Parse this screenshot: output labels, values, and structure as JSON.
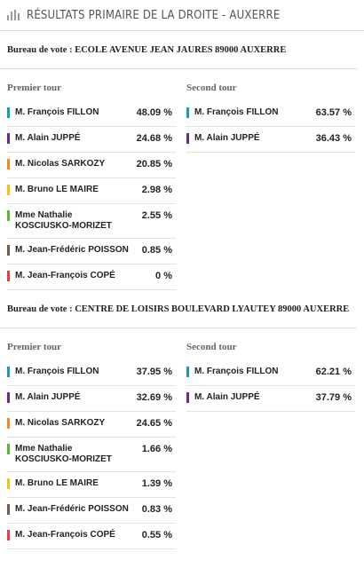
{
  "header": {
    "title": "RÉSULTATS PRIMAIRE DE LA DROITE - AUXERRE"
  },
  "bureaus": [
    {
      "name": "Bureau de vote : ECOLE AVENUE JEAN JAURES 89000 AUXERRE",
      "rounds": [
        {
          "title": "Premier tour",
          "results": [
            {
              "candidate": "M. François FILLON",
              "score": "48.09 %",
              "color": "#1a9bb5"
            },
            {
              "candidate": "M. Alain JUPPÉ",
              "score": "24.68 %",
              "color": "#6a2a8a"
            },
            {
              "candidate": "M. Nicolas SARKOZY",
              "score": "20.85 %",
              "color": "#f08a24"
            },
            {
              "candidate": "M. Bruno LE MAIRE",
              "score": "2.98 %",
              "color": "#f2c21b"
            },
            {
              "candidate": "Mme Nathalie KOSCIUSKO-MORIZET",
              "score": "2.55 %",
              "color": "#5cb531"
            },
            {
              "candidate": "M. Jean-Frédéric POISSON",
              "score": "0.85 %",
              "color": "#7a5a4a"
            },
            {
              "candidate": "M. Jean-François COPÉ",
              "score": "0 %",
              "color": "#e5404a"
            }
          ]
        },
        {
          "title": "Second tour",
          "results": [
            {
              "candidate": "M. François FILLON",
              "score": "63.57 %",
              "color": "#1a9bb5"
            },
            {
              "candidate": "M. Alain JUPPÉ",
              "score": "36.43 %",
              "color": "#6a2a8a"
            }
          ]
        }
      ]
    },
    {
      "name": "Bureau de vote : CENTRE DE LOISIRS BOULEVARD LYAUTEY 89000 AUXERRE",
      "rounds": [
        {
          "title": "Premier tour",
          "results": [
            {
              "candidate": "M. François FILLON",
              "score": "37.95 %",
              "color": "#1a9bb5"
            },
            {
              "candidate": "M. Alain JUPPÉ",
              "score": "32.69 %",
              "color": "#6a2a8a"
            },
            {
              "candidate": "M. Nicolas SARKOZY",
              "score": "24.65 %",
              "color": "#f08a24"
            },
            {
              "candidate": "Mme Nathalie KOSCIUSKO-MORIZET",
              "score": "1.66 %",
              "color": "#5cb531"
            },
            {
              "candidate": "M. Bruno LE MAIRE",
              "score": "1.39 %",
              "color": "#f2c21b"
            },
            {
              "candidate": "M. Jean-Frédéric POISSON",
              "score": "0.83 %",
              "color": "#7a5a4a"
            },
            {
              "candidate": "M. Jean-François COPÉ",
              "score": "0.55 %",
              "color": "#e5404a"
            }
          ]
        },
        {
          "title": "Second tour",
          "results": [
            {
              "candidate": "M. François FILLON",
              "score": "62.21 %",
              "color": "#1a9bb5"
            },
            {
              "candidate": "M. Alain JUPPÉ",
              "score": "37.79 %",
              "color": "#6a2a8a"
            }
          ]
        }
      ]
    }
  ]
}
